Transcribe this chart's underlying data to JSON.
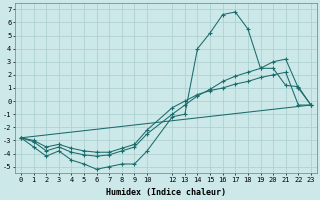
{
  "xlabel": "Humidex (Indice chaleur)",
  "xlim": [
    -0.5,
    23.5
  ],
  "ylim": [
    -5.5,
    7.5
  ],
  "xticks": [
    0,
    1,
    2,
    3,
    4,
    5,
    6,
    7,
    8,
    9,
    10,
    12,
    13,
    14,
    15,
    16,
    17,
    18,
    19,
    20,
    21,
    22,
    23
  ],
  "yticks": [
    -5,
    -4,
    -3,
    -2,
    -1,
    0,
    1,
    2,
    3,
    4,
    5,
    6,
    7
  ],
  "background_color": "#cce8e8",
  "line_color": "#1a6b6b",
  "grid_color": "#aacece",
  "font_family": "monospace",
  "tick_fontsize": 5,
  "label_fontsize": 6,
  "series1_x": [
    0,
    1,
    2,
    3,
    4,
    5,
    6,
    7,
    8,
    9,
    10,
    12,
    13,
    14,
    15,
    16,
    17,
    18,
    19,
    20,
    21,
    22,
    23
  ],
  "series1_y": [
    -2.8,
    -3.5,
    -4.2,
    -3.8,
    -4.5,
    -4.8,
    -5.2,
    -5.0,
    -4.8,
    -4.8,
    -3.8,
    -1.2,
    -1.0,
    4.0,
    5.2,
    6.6,
    6.8,
    5.5,
    2.5,
    2.5,
    1.2,
    1.1,
    -0.3
  ],
  "series2_x": [
    0,
    1,
    2,
    3,
    4,
    5,
    6,
    7,
    8,
    9,
    10,
    12,
    13,
    14,
    15,
    16,
    17,
    18,
    19,
    20,
    21,
    22,
    23
  ],
  "series2_y": [
    -2.8,
    -3.1,
    -3.8,
    -3.5,
    -3.9,
    -4.1,
    -4.2,
    -4.1,
    -3.8,
    -3.5,
    -2.5,
    -1.0,
    -0.3,
    0.4,
    0.9,
    1.5,
    1.9,
    2.2,
    2.5,
    3.0,
    3.2,
    1.0,
    -0.3
  ],
  "series3_x": [
    0,
    1,
    2,
    3,
    4,
    5,
    6,
    7,
    8,
    9,
    10,
    12,
    13,
    14,
    15,
    16,
    17,
    18,
    19,
    20,
    21,
    22,
    23
  ],
  "series3_y": [
    -2.8,
    -3.0,
    -3.5,
    -3.3,
    -3.6,
    -3.8,
    -3.9,
    -3.9,
    -3.6,
    -3.3,
    -2.2,
    -0.5,
    0.0,
    0.5,
    0.8,
    1.0,
    1.3,
    1.5,
    1.8,
    2.0,
    2.2,
    -0.3,
    -0.3
  ],
  "series4_x": [
    0,
    23
  ],
  "series4_y": [
    -2.8,
    -0.3
  ]
}
